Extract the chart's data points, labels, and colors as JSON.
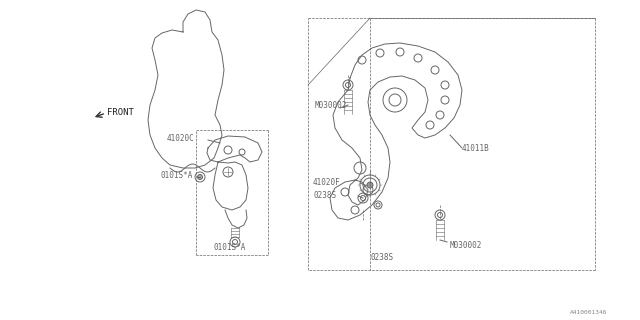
{
  "bg_color": "#ffffff",
  "line_color": "#666666",
  "label_color": "#333333",
  "diagram_id": "A410001346",
  "figsize": [
    6.4,
    3.2
  ],
  "dpi": 100,
  "labels": {
    "front": "FRONT",
    "41020C": "41020C",
    "0101SA_top": "0101S*A",
    "0101SA_bot": "0101S*A",
    "41011B": "41011B",
    "M030002_top": "M030002",
    "41020F": "41020F",
    "0238S_left": "0238S",
    "0238S_bot": "0238S",
    "M030002_bot": "M030002"
  }
}
